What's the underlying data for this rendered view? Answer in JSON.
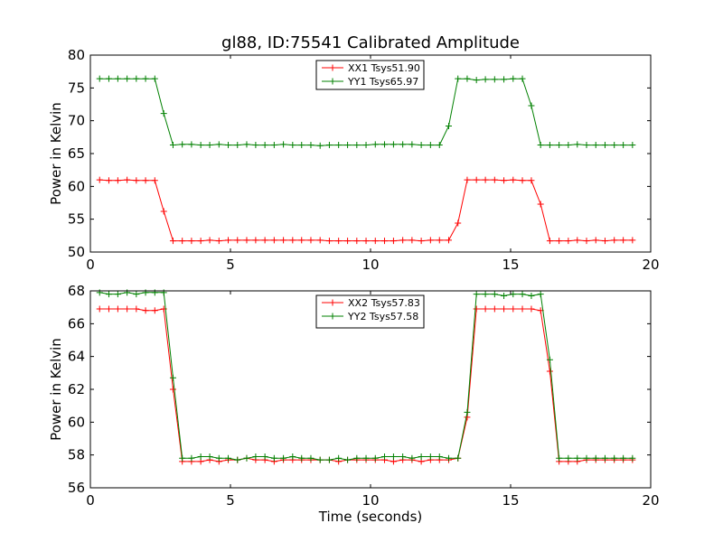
{
  "figure_title": "gl88, ID:75541 Calibrated Amplitude",
  "colors": {
    "xx": "#ff0000",
    "yy": "#008000"
  },
  "chart_data": [
    {
      "type": "line",
      "title": "gl88, ID:75541 Calibrated Amplitude",
      "xlabel": "",
      "ylabel": "Power in Kelvin",
      "xlim": [
        0,
        20
      ],
      "ylim": [
        50,
        80
      ],
      "xticks": [
        0,
        5,
        10,
        15,
        20
      ],
      "yticks": [
        50,
        55,
        60,
        65,
        70,
        75,
        80
      ],
      "grid": false,
      "legend": "top-center",
      "x": [
        0.33,
        0.66,
        0.98,
        1.31,
        1.64,
        1.97,
        2.3,
        2.62,
        2.95,
        3.28,
        3.61,
        3.94,
        4.26,
        4.59,
        4.92,
        5.25,
        5.58,
        5.9,
        6.23,
        6.56,
        6.89,
        7.22,
        7.54,
        7.87,
        8.2,
        8.53,
        8.86,
        9.18,
        9.51,
        9.84,
        10.17,
        10.5,
        10.82,
        11.15,
        11.48,
        11.81,
        12.14,
        12.46,
        12.79,
        13.12,
        13.45,
        13.78,
        14.1,
        14.43,
        14.76,
        15.09,
        15.42,
        15.74,
        16.07,
        16.4,
        16.73,
        17.06,
        17.38,
        17.71,
        18.04,
        18.37,
        18.7,
        19.02,
        19.35
      ],
      "series": [
        {
          "name": "XX1 Tsys51.90",
          "color": "#ff0000",
          "values": [
            61.0,
            60.9,
            60.9,
            61.0,
            60.9,
            60.9,
            60.9,
            56.2,
            51.7,
            51.7,
            51.7,
            51.7,
            51.8,
            51.7,
            51.8,
            51.8,
            51.8,
            51.8,
            51.8,
            51.8,
            51.8,
            51.8,
            51.8,
            51.8,
            51.8,
            51.7,
            51.7,
            51.7,
            51.7,
            51.7,
            51.7,
            51.7,
            51.7,
            51.8,
            51.8,
            51.7,
            51.8,
            51.8,
            51.8,
            54.4,
            61.0,
            61.0,
            61.0,
            61.0,
            60.9,
            61.0,
            60.9,
            60.9,
            57.3,
            51.7,
            51.7,
            51.7,
            51.8,
            51.7,
            51.8,
            51.7,
            51.8,
            51.8,
            51.8
          ]
        },
        {
          "name": "YY1 Tsys65.97",
          "color": "#008000",
          "values": [
            76.4,
            76.4,
            76.4,
            76.4,
            76.4,
            76.4,
            76.4,
            71.1,
            66.3,
            66.4,
            66.4,
            66.3,
            66.3,
            66.4,
            66.3,
            66.3,
            66.4,
            66.3,
            66.3,
            66.3,
            66.4,
            66.3,
            66.3,
            66.3,
            66.2,
            66.3,
            66.3,
            66.3,
            66.3,
            66.3,
            66.4,
            66.4,
            66.4,
            66.4,
            66.4,
            66.3,
            66.3,
            66.3,
            69.2,
            76.4,
            76.4,
            76.2,
            76.3,
            76.3,
            76.3,
            76.4,
            76.4,
            72.3,
            66.3,
            66.3,
            66.3,
            66.3,
            66.4,
            66.3,
            66.3,
            66.3,
            66.3,
            66.3,
            66.3
          ]
        }
      ]
    },
    {
      "type": "line",
      "title": "",
      "xlabel": "Time (seconds)",
      "ylabel": "Power in Kelvin",
      "xlim": [
        0,
        20
      ],
      "ylim": [
        56,
        68
      ],
      "xticks": [
        0,
        5,
        10,
        15,
        20
      ],
      "yticks": [
        56,
        58,
        60,
        62,
        64,
        66,
        68
      ],
      "grid": false,
      "legend": "top-center",
      "x": [
        0.33,
        0.66,
        0.98,
        1.31,
        1.64,
        1.97,
        2.3,
        2.62,
        2.95,
        3.28,
        3.61,
        3.94,
        4.26,
        4.59,
        4.92,
        5.25,
        5.58,
        5.9,
        6.23,
        6.56,
        6.89,
        7.22,
        7.54,
        7.87,
        8.2,
        8.53,
        8.86,
        9.18,
        9.51,
        9.84,
        10.17,
        10.5,
        10.82,
        11.15,
        11.48,
        11.81,
        12.14,
        12.46,
        12.79,
        13.12,
        13.45,
        13.78,
        14.1,
        14.43,
        14.76,
        15.09,
        15.42,
        15.74,
        16.07,
        16.4,
        16.73,
        17.06,
        17.38,
        17.71,
        18.04,
        18.37,
        18.7,
        19.02,
        19.35
      ],
      "series": [
        {
          "name": "XX2 Tsys57.83",
          "color": "#ff0000",
          "values": [
            66.9,
            66.9,
            66.9,
            66.9,
            66.9,
            66.8,
            66.8,
            66.9,
            62.0,
            57.6,
            57.6,
            57.6,
            57.7,
            57.6,
            57.7,
            57.7,
            57.8,
            57.7,
            57.7,
            57.6,
            57.7,
            57.7,
            57.7,
            57.7,
            57.7,
            57.7,
            57.6,
            57.7,
            57.7,
            57.7,
            57.7,
            57.7,
            57.6,
            57.7,
            57.7,
            57.6,
            57.7,
            57.7,
            57.7,
            57.8,
            60.3,
            66.9,
            66.9,
            66.9,
            66.9,
            66.9,
            66.9,
            66.9,
            66.8,
            63.1,
            57.6,
            57.6,
            57.6,
            57.7,
            57.7,
            57.7,
            57.7,
            57.7,
            57.7
          ]
        },
        {
          "name": "YY2 Tsys57.58",
          "color": "#008000",
          "values": [
            67.9,
            67.8,
            67.8,
            67.9,
            67.8,
            67.9,
            67.9,
            67.9,
            62.7,
            57.8,
            57.8,
            57.9,
            57.9,
            57.8,
            57.8,
            57.7,
            57.8,
            57.9,
            57.9,
            57.8,
            57.8,
            57.9,
            57.8,
            57.8,
            57.7,
            57.7,
            57.8,
            57.7,
            57.8,
            57.8,
            57.8,
            57.9,
            57.9,
            57.9,
            57.8,
            57.9,
            57.9,
            57.9,
            57.8,
            57.8,
            60.6,
            67.8,
            67.8,
            67.8,
            67.7,
            67.8,
            67.8,
            67.7,
            67.8,
            63.8,
            57.8,
            57.8,
            57.8,
            57.8,
            57.8,
            57.8,
            57.8,
            57.8,
            57.8
          ]
        }
      ]
    }
  ]
}
